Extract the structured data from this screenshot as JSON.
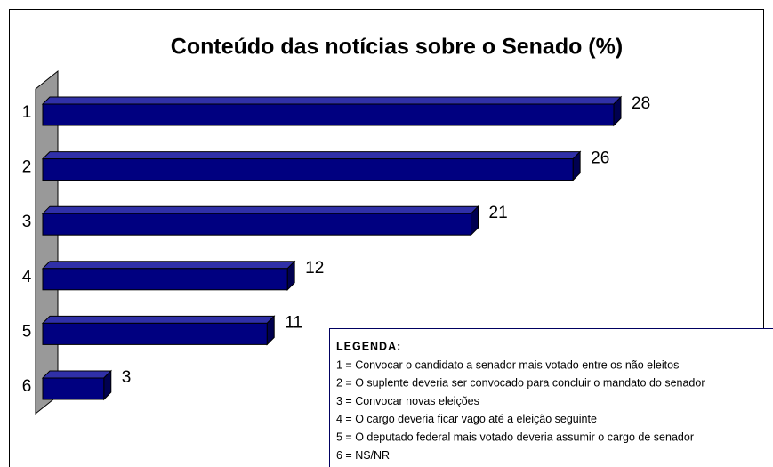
{
  "chart_data": {
    "type": "bar",
    "orientation": "horizontal",
    "title": "Conteúdo das notícias sobre o Senado (%)",
    "categories": [
      "1",
      "2",
      "3",
      "4",
      "5",
      "6"
    ],
    "values": [
      28,
      26,
      21,
      12,
      11,
      3
    ],
    "color": "#000080",
    "legend": {
      "title": "LEGENDA:",
      "items": [
        "1 = Convocar o candidato a senador mais votado entre os não eleitos",
        "2 = O suplente deveria ser convocado para concluir o mandato do senador",
        "3 = Convocar novas eleições",
        "4 = O cargo deveria ficar vago até a eleição seguinte",
        "5 = O deputado federal mais votado deveria assumir o cargo de senador",
        "6 = NS/NR"
      ]
    }
  }
}
